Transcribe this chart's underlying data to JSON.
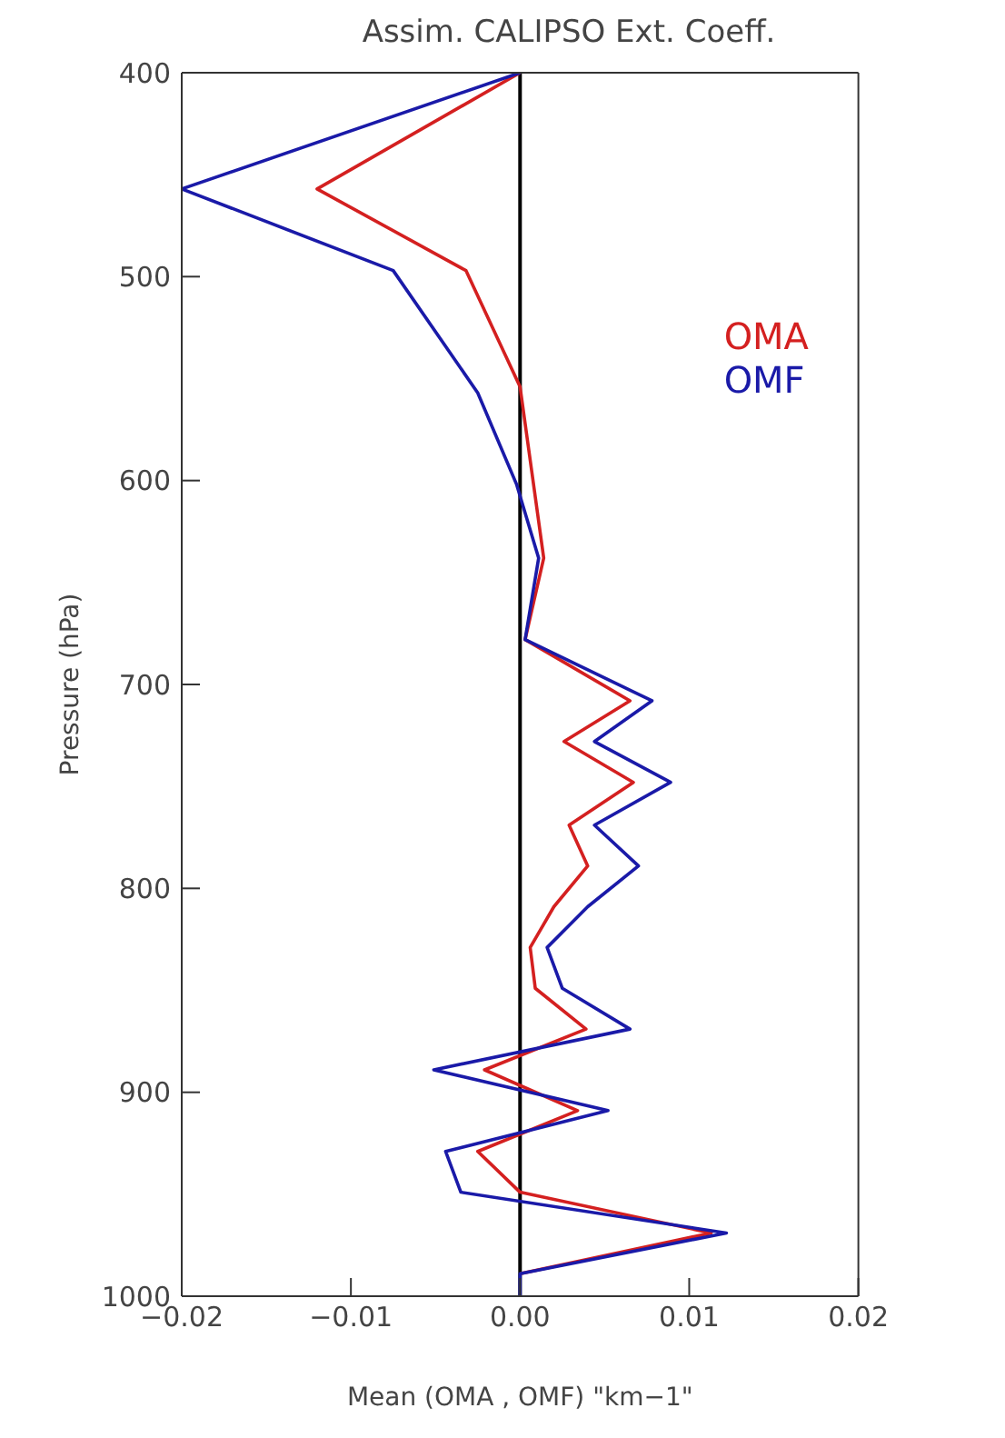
{
  "chart_data": {
    "type": "line",
    "orientation": "horizontal",
    "title": "Assim. CALIPSO Ext. Coeff.",
    "xlabel": "Mean (OMA , OMF) \"km−1\"",
    "ylabel": "Pressure (hPa)",
    "xlim": [
      -0.02,
      0.02
    ],
    "xticks": [
      {
        "value": -0.02,
        "label": "−0.02"
      },
      {
        "value": -0.01,
        "label": "−0.01"
      },
      {
        "value": 0,
        "label": "0.00"
      },
      {
        "value": 0.01,
        "label": "0.01"
      },
      {
        "value": 0.02,
        "label": "0.02"
      }
    ],
    "ylim": [
      1000,
      400
    ],
    "yticks": [
      400,
      500,
      600,
      700,
      800,
      900,
      1000
    ],
    "ref_lines": [
      {
        "axis": "x",
        "value": 0,
        "color": "#000000"
      }
    ],
    "legend": "right",
    "marker": "none",
    "line_style": "solid",
    "series": [
      {
        "name": "OMA",
        "color": "#d42020",
        "x": [
          400,
          457,
          497,
          554,
          638,
          678,
          708,
          728,
          748,
          769,
          789,
          809,
          829,
          849,
          869,
          889,
          909,
          929,
          949,
          969,
          989
        ],
        "values": [
          0,
          -0.012,
          -0.0032,
          0,
          0.0014,
          0.0003,
          0.0065,
          0.0026,
          0.0067,
          0.0029,
          0.004,
          0.002,
          0.0006,
          0.0009,
          0.0039,
          -0.0021,
          0.0034,
          -0.0025,
          0,
          0.0113,
          0
        ]
      },
      {
        "name": "OMF",
        "color": "#1a1aa8",
        "x": [
          400,
          457,
          497,
          557,
          602,
          638,
          678,
          708,
          728,
          748,
          769,
          789,
          809,
          829,
          849,
          869,
          889,
          909,
          929,
          949,
          969,
          989,
          1000
        ],
        "values": [
          0,
          -0.02,
          -0.0075,
          -0.0025,
          -0.0002,
          0.0011,
          0.0003,
          0.0078,
          0.0044,
          0.0089,
          0.0044,
          0.007,
          0.004,
          0.0016,
          0.0025,
          0.0065,
          -0.0051,
          0.0052,
          -0.0044,
          -0.0035,
          0.0122,
          0,
          0
        ]
      }
    ]
  }
}
